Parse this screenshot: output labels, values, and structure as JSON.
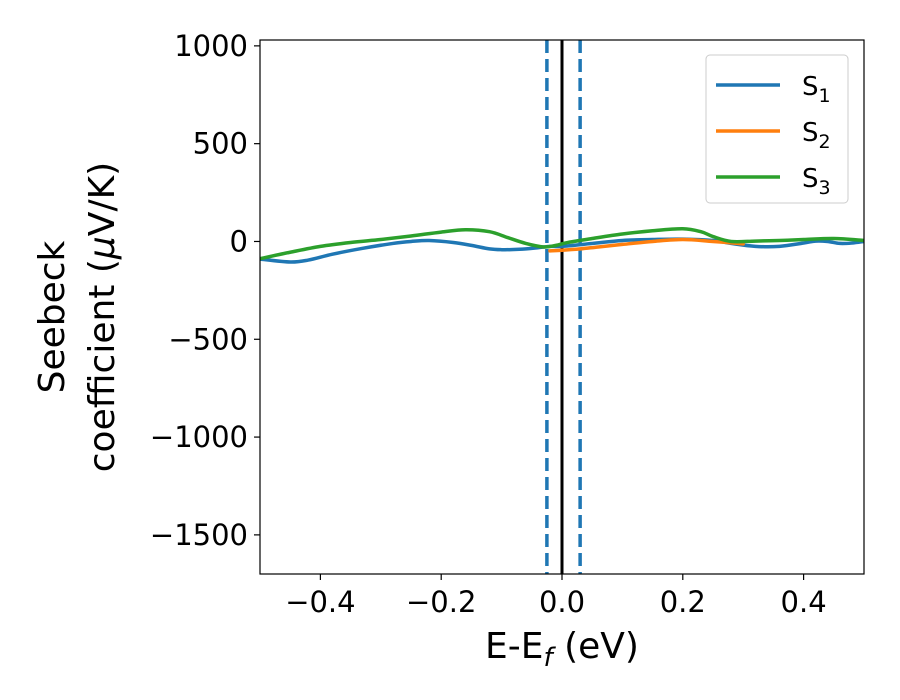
{
  "chart_data": {
    "type": "line",
    "xlabel_parts": [
      "E-E",
      "f",
      " (eV)"
    ],
    "ylabel_line1": "Seebeck",
    "ylabel_line2_parts": [
      "coefficient  (",
      "μ",
      "V/K)"
    ],
    "xlim": [
      -0.5,
      0.5
    ],
    "ylim": [
      -1700,
      1030
    ],
    "xticks": [
      -0.4,
      -0.2,
      0.0,
      0.2,
      0.4
    ],
    "xtick_labels": [
      "−0.4",
      "−0.2",
      "0.0",
      "0.2",
      "0.4"
    ],
    "yticks": [
      1000,
      500,
      0,
      -500,
      -1000,
      -1500
    ],
    "ytick_labels": [
      "1000",
      "500",
      "0",
      "−500",
      "−1000",
      "−1500"
    ],
    "grid": false,
    "legend_position": "top-right",
    "vlines": [
      {
        "x": 0.0,
        "style": "solid",
        "color": "#000000"
      },
      {
        "x": -0.025,
        "style": "dashed",
        "color": "#1f77b4"
      },
      {
        "x": 0.03,
        "style": "dashed",
        "color": "#1f77b4"
      }
    ],
    "series": [
      {
        "name": "S1",
        "label_base": "S",
        "label_sub": "1",
        "color": "#1f77b4",
        "x": [
          -0.5,
          -0.45,
          -0.42,
          -0.38,
          -0.33,
          -0.28,
          -0.25,
          -0.22,
          -0.18,
          -0.15,
          -0.12,
          -0.1,
          -0.07,
          -0.04,
          -0.02,
          0.0,
          0.05,
          0.1,
          0.15,
          0.2,
          0.25,
          0.28,
          0.32,
          0.36,
          0.4,
          0.42,
          0.44,
          0.46,
          0.48,
          0.5
        ],
        "y": [
          -90,
          -105,
          -95,
          -65,
          -35,
          -10,
          0,
          5,
          -5,
          -20,
          -38,
          -42,
          -40,
          -32,
          -25,
          -25,
          -10,
          5,
          10,
          12,
          5,
          -10,
          -25,
          -25,
          -8,
          2,
          0,
          -10,
          -8,
          0
        ]
      },
      {
        "name": "S2",
        "label_base": "S",
        "label_sub": "2",
        "color": "#ff7f0e",
        "x": [
          -0.02,
          0.0,
          0.03,
          0.06,
          0.1,
          0.15,
          0.2,
          0.25,
          0.3
        ],
        "y": [
          -48,
          -45,
          -38,
          -28,
          -15,
          0,
          10,
          0,
          -12
        ]
      },
      {
        "name": "S3",
        "label_base": "S",
        "label_sub": "3",
        "color": "#2ca02c",
        "x": [
          -0.5,
          -0.45,
          -0.4,
          -0.35,
          -0.3,
          -0.25,
          -0.2,
          -0.16,
          -0.12,
          -0.09,
          -0.06,
          -0.03,
          -0.01,
          0.01,
          0.05,
          0.1,
          0.15,
          0.2,
          0.23,
          0.25,
          0.28,
          0.32,
          0.36,
          0.4,
          0.45,
          0.5
        ],
        "y": [
          -88,
          -55,
          -25,
          -5,
          10,
          28,
          48,
          60,
          50,
          20,
          -10,
          -28,
          -20,
          -5,
          15,
          38,
          55,
          65,
          50,
          25,
          0,
          2,
          5,
          10,
          15,
          5
        ]
      }
    ]
  }
}
